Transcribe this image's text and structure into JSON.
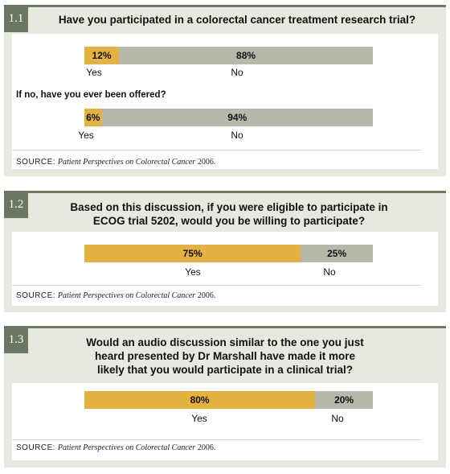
{
  "source": {
    "label": "SOURCE:",
    "title": "Patient Perspectives on Colorectal Cancer",
    "year": "2006."
  },
  "colors": {
    "yes": "#e4b23e",
    "no": "#b6b8ac",
    "badge": "#6a7762",
    "panel": "#e9e8de"
  },
  "panels": [
    {
      "id": "1.1",
      "question": "Have you participated in a colorectal cancer treatment research trial?",
      "followup": "If no, have you ever been offered?"
    },
    {
      "id": "1.2",
      "question": "Based on this discussion, if you were eligible to participate in ECOG trial 5202, would you be willing to participate?"
    },
    {
      "id": "1.3",
      "question": "Would an audio discussion similar to the one you just heard presented by Dr Marshall have made it more likely that you would participate in a clinical trial?"
    }
  ],
  "chart_data": [
    {
      "type": "bar",
      "title": "Have you participated in a colorectal cancer treatment research trial?",
      "categories": [
        "Yes",
        "No"
      ],
      "values": [
        12,
        88
      ],
      "labels": [
        "12%",
        "88%"
      ]
    },
    {
      "type": "bar",
      "title": "If no, have you ever been offered?",
      "categories": [
        "Yes",
        "No"
      ],
      "values": [
        6,
        94
      ],
      "labels": [
        "6%",
        "94%"
      ]
    },
    {
      "type": "bar",
      "title": "Based on this discussion, if you were eligible to participate in ECOG trial 5202, would you be willing to participate?",
      "categories": [
        "Yes",
        "No"
      ],
      "values": [
        75,
        25
      ],
      "labels": [
        "75%",
        "25%"
      ]
    },
    {
      "type": "bar",
      "title": "Would an audio discussion similar to the one you just heard presented by Dr Marshall have made it more likely that you would participate in a clinical trial?",
      "categories": [
        "Yes",
        "No"
      ],
      "values": [
        80,
        20
      ],
      "labels": [
        "80%",
        "20%"
      ]
    }
  ]
}
